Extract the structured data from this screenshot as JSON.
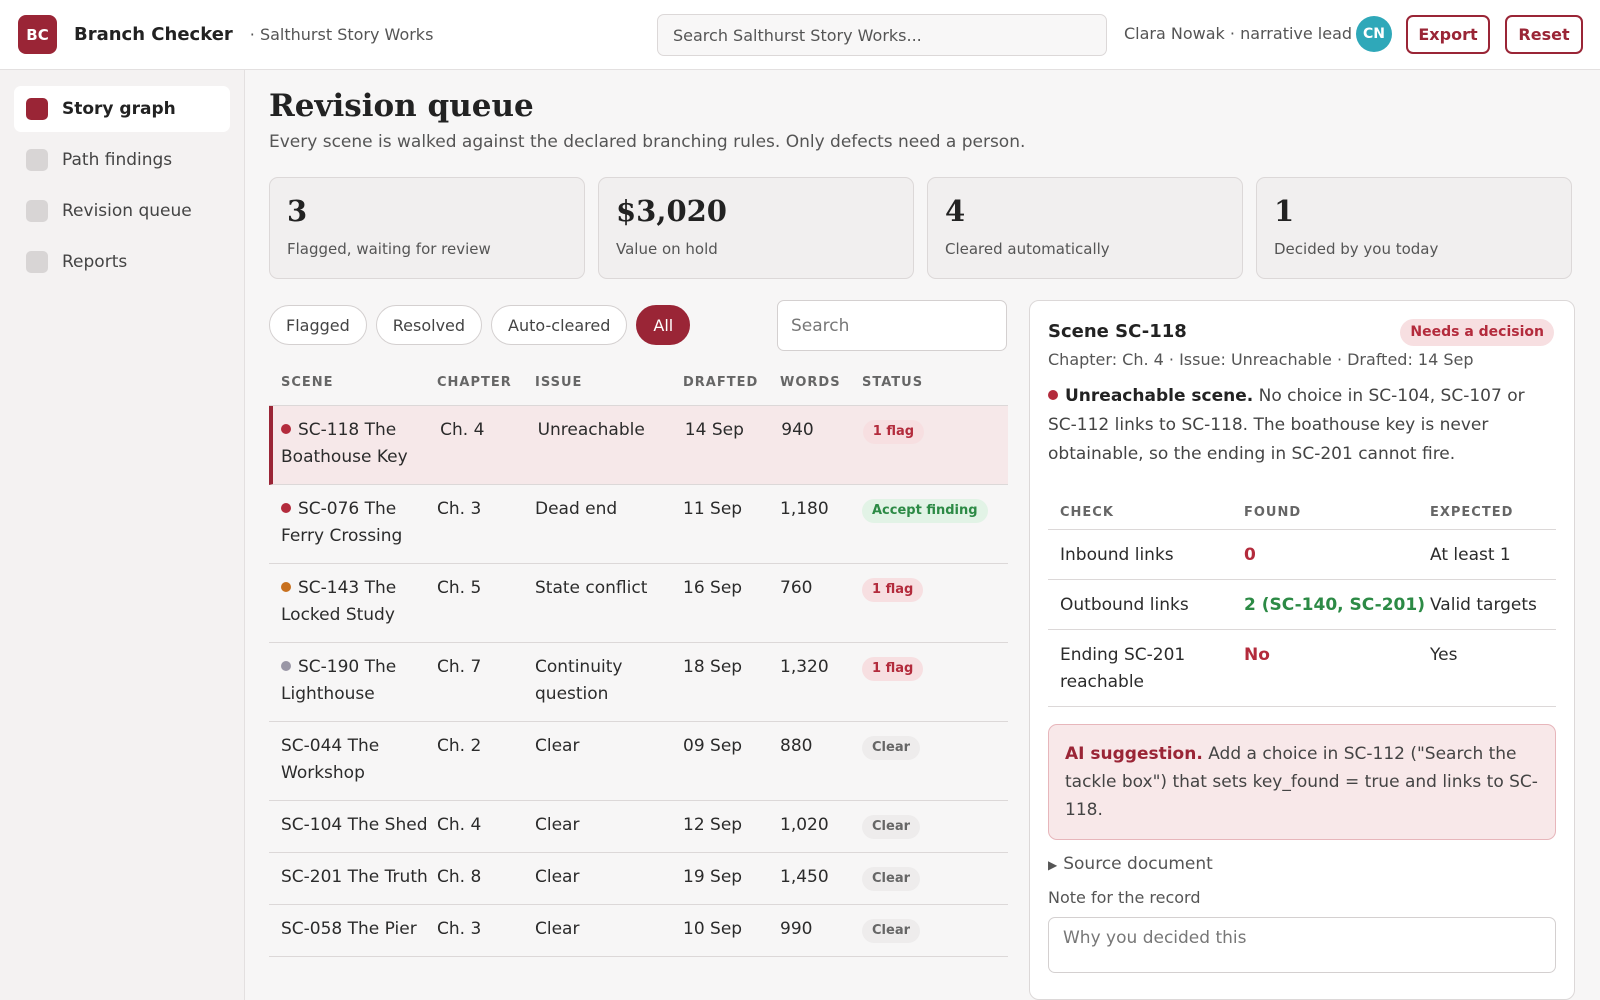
{
  "header": {
    "logo_text": "BC",
    "app_title": "Branch Checker",
    "workspace": "· Salthurst Story Works",
    "search_placeholder": "Search Salthurst Story Works...",
    "user": "Clara Nowak · narrative lead",
    "avatar_initials": "CN",
    "export_label": "Export",
    "reset_label": "Reset"
  },
  "sidebar": {
    "items": [
      {
        "label": "Story graph",
        "active": true
      },
      {
        "label": "Path findings",
        "active": false
      },
      {
        "label": "Revision queue",
        "active": false
      },
      {
        "label": "Reports",
        "active": false
      }
    ]
  },
  "main": {
    "title": "Revision queue",
    "subtitle": "Every scene is walked against the declared branching rules. Only defects need a person.",
    "stats": [
      {
        "value": "3",
        "label": "Flagged, waiting for review"
      },
      {
        "value": "$3,020",
        "label": "Value on hold"
      },
      {
        "value": "4",
        "label": "Cleared automatically"
      },
      {
        "value": "1",
        "label": "Decided by you today"
      }
    ],
    "filters": [
      "Flagged",
      "Resolved",
      "Auto-cleared",
      "All"
    ],
    "active_filter": "All",
    "search_placeholder": "Search"
  },
  "table": {
    "columns": [
      "SCENE",
      "CHAPTER",
      "ISSUE",
      "DRAFTED",
      "WORDS",
      "STATUS"
    ],
    "rows": [
      {
        "scene": "SC-118 The Boathouse Key",
        "chapter": "Ch. 4",
        "issue": "Unreachable",
        "drafted": "14 Sep",
        "words": "940",
        "status": "1 flag",
        "status_type": "flag",
        "dot": "#b32b3c",
        "selected": true
      },
      {
        "scene": "SC-076 The Ferry Crossing",
        "chapter": "Ch. 3",
        "issue": "Dead end",
        "drafted": "11 Sep",
        "words": "1,180",
        "status": "Accept finding",
        "status_type": "accept",
        "dot": "#b32b3c",
        "selected": false
      },
      {
        "scene": "SC-143 The Locked Study",
        "chapter": "Ch. 5",
        "issue": "State conflict",
        "drafted": "16 Sep",
        "words": "760",
        "status": "1 flag",
        "status_type": "flag",
        "dot": "#c8701e",
        "selected": false
      },
      {
        "scene": "SC-190 The Lighthouse",
        "chapter": "Ch. 7",
        "issue": "Continuity question",
        "drafted": "18 Sep",
        "words": "1,320",
        "status": "1 flag",
        "status_type": "flag",
        "dot": "#9a97a6",
        "selected": false
      },
      {
        "scene": "SC-044 The Workshop",
        "chapter": "Ch. 2",
        "issue": "Clear",
        "drafted": "09 Sep",
        "words": "880",
        "status": "Clear",
        "status_type": "clear",
        "dot": "",
        "selected": false
      },
      {
        "scene": "SC-104 The Shed",
        "chapter": "Ch. 4",
        "issue": "Clear",
        "drafted": "12 Sep",
        "words": "1,020",
        "status": "Clear",
        "status_type": "clear",
        "dot": "",
        "selected": false
      },
      {
        "scene": "SC-201 The Truth",
        "chapter": "Ch. 8",
        "issue": "Clear",
        "drafted": "19 Sep",
        "words": "1,450",
        "status": "Clear",
        "status_type": "clear",
        "dot": "",
        "selected": false
      },
      {
        "scene": "SC-058 The Pier",
        "chapter": "Ch. 3",
        "issue": "Clear",
        "drafted": "10 Sep",
        "words": "990",
        "status": "Clear",
        "status_type": "clear",
        "dot": "",
        "selected": false
      }
    ]
  },
  "detail": {
    "title": "Scene SC-118",
    "badge": "Needs a decision",
    "meta": "Chapter: Ch. 4 · Issue: Unreachable · Drafted: 14 Sep",
    "finding_title": "Unreachable scene.",
    "finding_text": "No choice in SC-104, SC-107 or SC-112 links to SC-118. The boathouse key is never obtainable, so the ending in SC-201 cannot fire.",
    "check_columns": [
      "CHECK",
      "FOUND",
      "EXPECTED"
    ],
    "checks": [
      {
        "check": "Inbound links",
        "found": "0",
        "found_type": "bad",
        "expected": "At least 1"
      },
      {
        "check": "Outbound links",
        "found": "2 (SC-140, SC-201)",
        "found_type": "good",
        "expected": "Valid targets"
      },
      {
        "check": "Ending SC-201 reachable",
        "found": "No",
        "found_type": "bad",
        "expected": "Yes"
      }
    ],
    "ai_label": "AI suggestion.",
    "ai_text": "Add a choice in SC-112 (\"Search the tackle box\") that sets key_found = true and links to SC-118.",
    "source_label": "Source document",
    "note_label": "Note for the record",
    "note_placeholder": "Why you decided this"
  },
  "colors": {
    "accent": "#9a2536",
    "flag": "#b32b3c",
    "good": "#2c8a45",
    "avatar": "#2fa8b9"
  }
}
